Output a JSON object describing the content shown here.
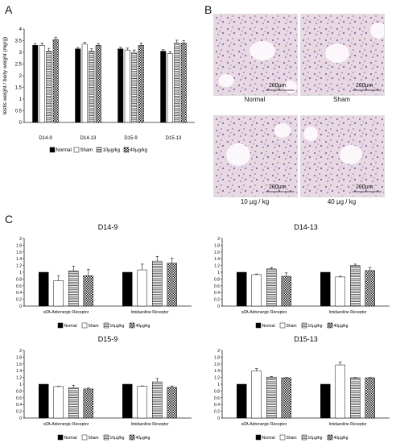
{
  "panels": {
    "a": "A",
    "b": "B",
    "c": "C"
  },
  "colors": {
    "normal": "#000000",
    "sham": "#ffffff",
    "dose10": "#ffffff",
    "dose40": "#ffffff",
    "axis": "#222222"
  },
  "patterns": {
    "normal": "solid-black",
    "sham": "white",
    "dose10": "horizontal-stripes",
    "dose40": "checker"
  },
  "micrographs": {
    "scale_label": "200μm",
    "items": [
      {
        "caption": "Normal"
      },
      {
        "caption": "Sham"
      },
      {
        "caption": "10 μg / kg"
      },
      {
        "caption": "40 μg / kg"
      }
    ]
  },
  "chart_data": [
    {
      "type": "bar",
      "title": "",
      "ylabel": "testis weight / body weight (mg/g)",
      "xlabel": "",
      "ylim": [
        0,
        4
      ],
      "yticks": [
        "0",
        "0.5",
        "1",
        "1.5",
        "2",
        "2.5",
        "3",
        "3.5",
        "4"
      ],
      "categories": [
        "D14-9",
        "D14-13",
        "D15-9",
        "D15-13"
      ],
      "series": [
        {
          "name": "Normal",
          "values": [
            3.3,
            3.15,
            3.15,
            3.05
          ],
          "errors": [
            0.08,
            0.06,
            0.07,
            0.06
          ]
        },
        {
          "name": "Sham",
          "values": [
            3.3,
            3.35,
            3.1,
            2.95
          ],
          "errors": [
            0.1,
            0.08,
            0.08,
            0.08
          ]
        },
        {
          "name": "10μg/kg",
          "values": [
            3.05,
            3.05,
            3.0,
            3.4
          ],
          "errors": [
            0.12,
            0.1,
            0.1,
            0.12
          ]
        },
        {
          "name": "40μg/kg",
          "values": [
            3.55,
            3.3,
            3.3,
            3.4
          ],
          "errors": [
            0.1,
            0.08,
            0.1,
            0.1
          ]
        }
      ],
      "legend": "bottom"
    },
    {
      "type": "bar",
      "title": "D14-9",
      "ylim": [
        0,
        2
      ],
      "yticks": [
        "0",
        "0.2",
        "0.4",
        "0.6",
        "0.8",
        "1",
        "1.2",
        "1.4",
        "1.6",
        "1.8",
        "2"
      ],
      "categories": [
        "α2A-Adrenergic Receptor",
        "Imidazoline Receptor"
      ],
      "series": [
        {
          "name": "Normal",
          "values": [
            1.0,
            1.0
          ],
          "errors": [
            0,
            0
          ]
        },
        {
          "name": "Sham",
          "values": [
            0.75,
            1.07
          ],
          "errors": [
            0.14,
            0.17
          ]
        },
        {
          "name": "10μg/kg",
          "values": [
            1.04,
            1.33
          ],
          "errors": [
            0.14,
            0.14
          ]
        },
        {
          "name": "40μg/kg",
          "values": [
            0.9,
            1.27
          ],
          "errors": [
            0.19,
            0.15
          ]
        }
      ],
      "legend": "bottom"
    },
    {
      "type": "bar",
      "title": "D14-13",
      "ylim": [
        0,
        2
      ],
      "yticks": [
        "0",
        "0.2",
        "0.4",
        "0.6",
        "0.8",
        "1",
        "1.2",
        "1.4",
        "1.6",
        "1.8",
        "2"
      ],
      "categories": [
        "α2A-Adrenergic Receptor",
        "Imidazoline Receptor"
      ],
      "series": [
        {
          "name": "Normal",
          "values": [
            1.0,
            1.0
          ],
          "errors": [
            0,
            0
          ]
        },
        {
          "name": "Sham",
          "values": [
            0.93,
            0.86
          ],
          "errors": [
            0.02,
            0.02
          ]
        },
        {
          "name": "10μg/kg",
          "values": [
            1.1,
            1.2
          ],
          "errors": [
            0.04,
            0.04
          ]
        },
        {
          "name": "40μg/kg",
          "values": [
            0.88,
            1.05
          ],
          "errors": [
            0.1,
            0.09
          ]
        }
      ],
      "legend": "bottom"
    },
    {
      "type": "bar",
      "title": "D15-9",
      "ylim": [
        0,
        2
      ],
      "yticks": [
        "0",
        "0.2",
        "0.4",
        "0.6",
        "0.8",
        "1",
        "1.2",
        "1.4",
        "1.6",
        "1.8",
        "2"
      ],
      "categories": [
        "α2A-Adrenergic Receptor",
        "Imidazoline Receptor"
      ],
      "series": [
        {
          "name": "Normal",
          "values": [
            1.0,
            1.0
          ],
          "errors": [
            0,
            0
          ]
        },
        {
          "name": "Sham",
          "values": [
            0.93,
            0.94
          ],
          "errors": [
            0.01,
            0.01
          ]
        },
        {
          "name": "10μg/kg",
          "values": [
            0.9,
            1.07
          ],
          "errors": [
            0.07,
            0.1
          ]
        },
        {
          "name": "40μg/kg",
          "values": [
            0.86,
            0.91
          ],
          "errors": [
            0.03,
            0.04
          ]
        }
      ],
      "legend": "bottom"
    },
    {
      "type": "bar",
      "title": "D15-13",
      "ylim": [
        0,
        2
      ],
      "yticks": [
        "0",
        "0.2",
        "0.4",
        "0.6",
        "0.8",
        "1",
        "1.2",
        "1.4",
        "1.6",
        "1.8",
        "2"
      ],
      "categories": [
        "α2A-Adrenergic Receptor",
        "Imidazoline Receptor"
      ],
      "series": [
        {
          "name": "Normal",
          "values": [
            1.0,
            1.0
          ],
          "errors": [
            0,
            0
          ]
        },
        {
          "name": "Sham",
          "values": [
            1.39,
            1.57
          ],
          "errors": [
            0.07,
            0.09
          ]
        },
        {
          "name": "10μg/kg",
          "values": [
            1.21,
            1.19
          ],
          "errors": [
            0.02,
            0.01
          ]
        },
        {
          "name": "40μg/kg",
          "values": [
            1.19,
            1.19
          ],
          "errors": [
            0.01,
            0.01
          ]
        }
      ],
      "legend": "bottom"
    }
  ]
}
